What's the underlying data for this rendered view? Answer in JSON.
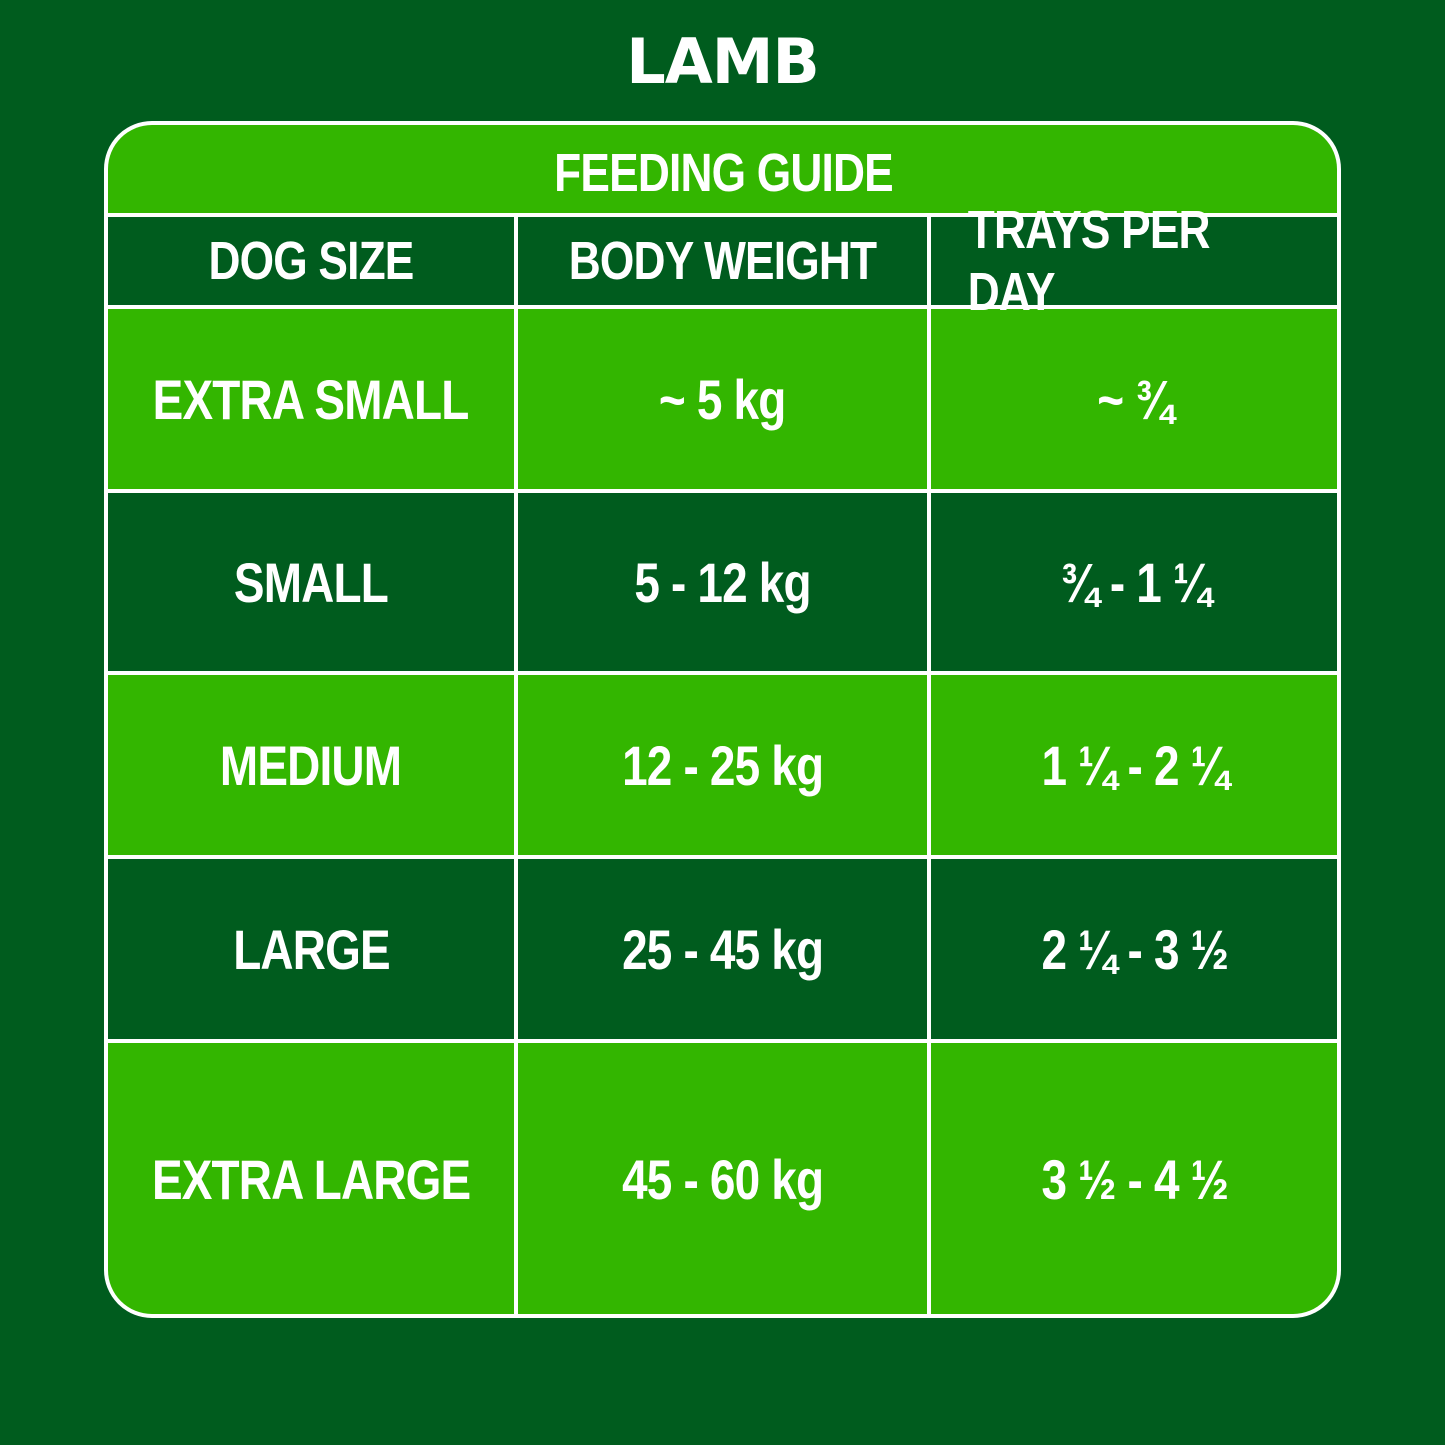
{
  "title": "LAMB",
  "guide_title": "FEEDING GUIDE",
  "columns": [
    "DOG SIZE",
    "BODY WEIGHT",
    "TRAYS PER DAY"
  ],
  "rows": [
    {
      "size": "EXTRA SMALL",
      "weight": "~ 5 kg",
      "trays": "~ ¾"
    },
    {
      "size": "SMALL",
      "weight": "5 - 12 kg",
      "trays": "¾ - 1 ¼"
    },
    {
      "size": "MEDIUM",
      "weight": "12 - 25 kg",
      "trays": "1 ¼ - 2 ¼"
    },
    {
      "size": "LARGE",
      "weight": "25 - 45 kg",
      "trays": "2 ¼ - 3 ½"
    },
    {
      "size": "EXTRA LARGE",
      "weight": "45 - 60 kg",
      "trays": "3 ½ - 4 ½"
    }
  ],
  "colors": {
    "background": "#005c1e",
    "light_row": "#33b600",
    "dark_row": "#005c1e",
    "border": "#ffffff",
    "text": "#ffffff"
  }
}
